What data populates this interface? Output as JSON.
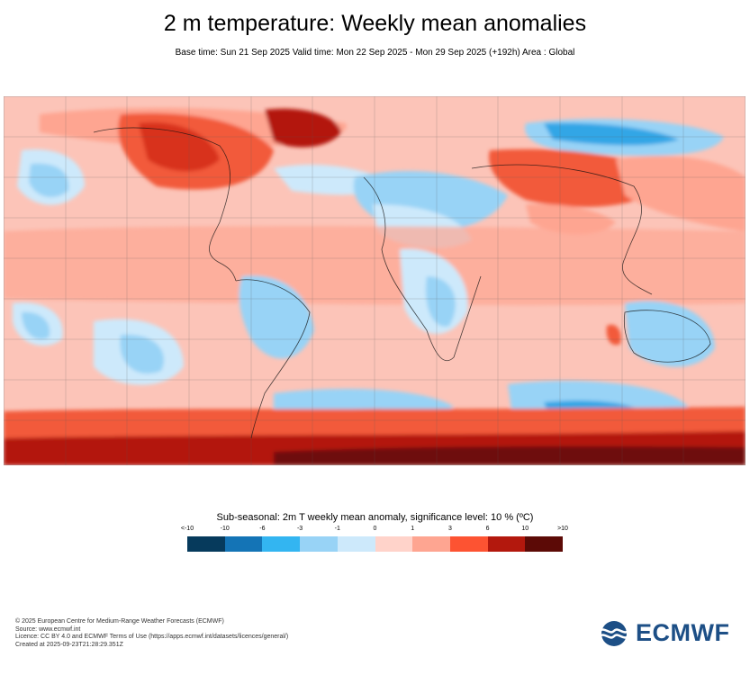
{
  "header": {
    "title": "2 m temperature: Weekly mean anomalies",
    "subtitle": "Base time: Sun 21 Sep 2025 Valid time: Mon 22 Sep 2025 - Mon 29 Sep 2025 (+192h) Area : Global"
  },
  "legend": {
    "title": "Sub-seasonal: 2m T weekly mean anomaly, significance level: 10 % (ºC)",
    "ticks": [
      "<-10",
      "-10",
      "-6",
      "-3",
      "-1",
      "0",
      "1",
      "3",
      "6",
      "10",
      ">10"
    ],
    "colors": [
      "#063a5c",
      "#1474b6",
      "#33b5f1",
      "#98d3f6",
      "#cde9fb",
      "#ffd3ca",
      "#fea591",
      "#fd5332",
      "#b3180d",
      "#5c0a06"
    ]
  },
  "map_colors": {
    "ocean_base": "#fcc4b8",
    "light_red": "#fea591",
    "red": "#f25a3b",
    "dark_red": "#b3180d",
    "darkest_red": "#6e1008",
    "light_blue": "#cde9fb",
    "blue": "#98d3f6",
    "mid_blue": "#33a6e6",
    "white": "#ffffff"
  },
  "footer": {
    "copyright": "© 2025 European Centre for Medium-Range Weather Forecasts (ECMWF)",
    "source": "Source: www.ecmwf.int",
    "licence": "Licence: CC BY 4.0 and ECMWF Terms of Use (https://apps.ecmwf.int/datasets/licences/general/)",
    "created": "Created at 2025-09-23T21:28:29.351Z"
  },
  "logo": {
    "text": "ECMWF",
    "icon": "ecmwf-wave-icon"
  }
}
